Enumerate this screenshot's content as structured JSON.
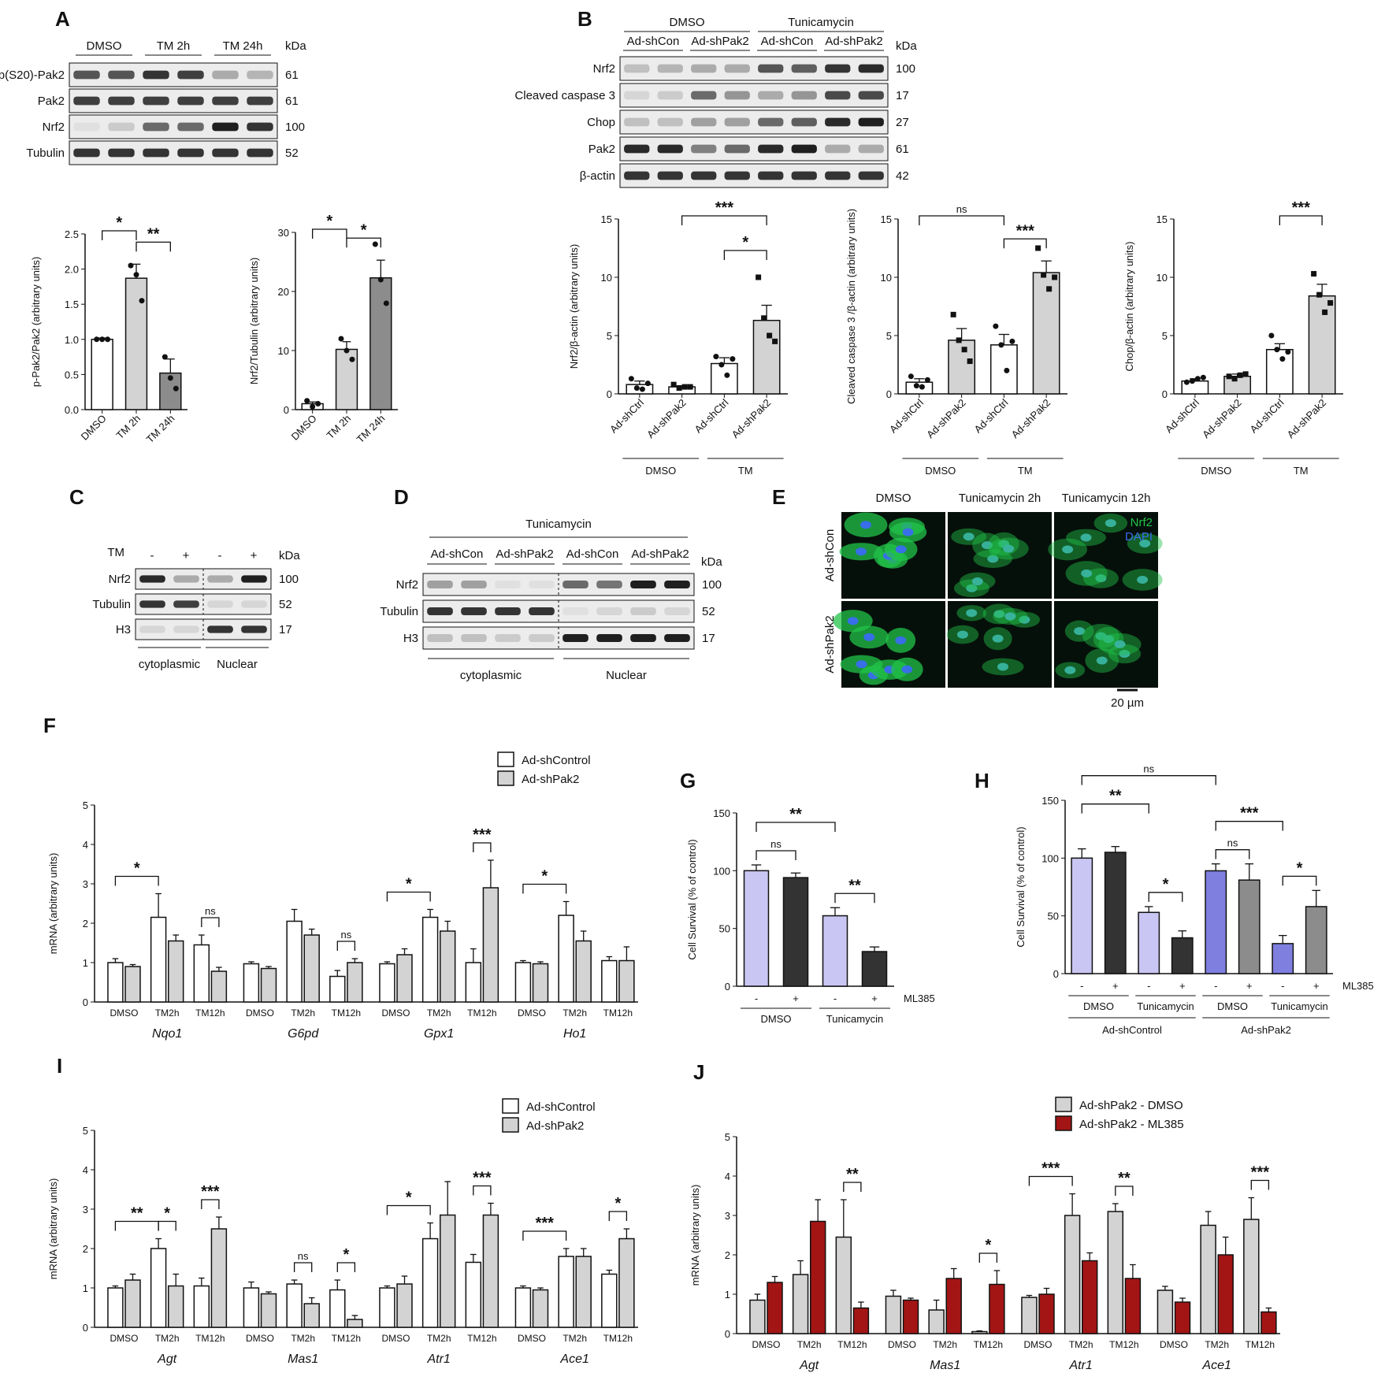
{
  "panel_letters": [
    "A",
    "B",
    "C",
    "D",
    "E",
    "F",
    "G",
    "H",
    "I",
    "J"
  ],
  "blotA": {
    "groups": [
      "DMSO",
      "TM 2h",
      "TM 24h"
    ],
    "kda_header": "kDa",
    "rows": [
      {
        "label": "p(S20)-Pak2",
        "kda": "61",
        "intensity": [
          0.7,
          0.7,
          0.85,
          0.8,
          0.3,
          0.25
        ]
      },
      {
        "label": "Pak2",
        "kda": "61",
        "intensity": [
          0.8,
          0.8,
          0.8,
          0.8,
          0.8,
          0.8
        ]
      },
      {
        "label": "Nrf2",
        "kda": "100",
        "intensity": [
          0.05,
          0.15,
          0.6,
          0.6,
          0.95,
          0.85
        ]
      },
      {
        "label": "Tubulin",
        "kda": "52",
        "intensity": [
          0.85,
          0.85,
          0.85,
          0.85,
          0.85,
          0.85
        ]
      }
    ]
  },
  "blotB": {
    "groups": [
      "DMSO",
      "Tunicamycin"
    ],
    "subgroups": [
      "Ad-shCon",
      "Ad-shPak2",
      "Ad-shCon",
      "Ad-shPak2"
    ],
    "kda_header": "kDa",
    "rows": [
      {
        "label": "Nrf2",
        "kda": "100",
        "intensity": [
          0.2,
          0.25,
          0.3,
          0.3,
          0.7,
          0.65,
          0.85,
          0.9
        ]
      },
      {
        "label": "Cleaved caspase 3",
        "kda": "17",
        "intensity": [
          0.1,
          0.15,
          0.6,
          0.4,
          0.3,
          0.4,
          0.75,
          0.75
        ]
      },
      {
        "label": "Chop",
        "kda": "27",
        "intensity": [
          0.2,
          0.2,
          0.35,
          0.35,
          0.6,
          0.65,
          0.9,
          0.95
        ]
      },
      {
        "label": "Pak2",
        "kda": "61",
        "intensity": [
          0.9,
          0.9,
          0.5,
          0.6,
          0.9,
          0.95,
          0.3,
          0.3
        ]
      },
      {
        "label": "β-actin",
        "kda": "42",
        "intensity": [
          0.85,
          0.85,
          0.85,
          0.85,
          0.85,
          0.85,
          0.85,
          0.85
        ]
      }
    ]
  },
  "blotC": {
    "treatment_label": "TM",
    "treatment_marks": [
      "-",
      "+",
      "-",
      "+"
    ],
    "kda_header": "kDa",
    "fractions": [
      "cytoplasmic",
      "Nuclear"
    ],
    "rows": [
      {
        "label": "Nrf2",
        "kda": "100",
        "intensity": [
          0.9,
          0.3,
          0.3,
          0.95
        ]
      },
      {
        "label": "Tubulin",
        "kda": "52",
        "intensity": [
          0.85,
          0.8,
          0.1,
          0.1
        ]
      },
      {
        "label": "H3",
        "kda": "17",
        "intensity": [
          0.1,
          0.1,
          0.85,
          0.85
        ]
      }
    ]
  },
  "blotD": {
    "group": "Tunicamycin",
    "subgroups": [
      "Ad-shCon",
      "Ad-shPak2",
      "Ad-shCon",
      "Ad-shPak2"
    ],
    "kda_header": "kDa",
    "fractions": [
      "cytoplasmic",
      "Nuclear"
    ],
    "rows": [
      {
        "label": "Nrf2",
        "kda": "100",
        "intensity": [
          0.35,
          0.35,
          0.05,
          0.05,
          0.6,
          0.55,
          0.95,
          0.95
        ]
      },
      {
        "label": "Tubulin",
        "kda": "52",
        "intensity": [
          0.85,
          0.85,
          0.85,
          0.85,
          0.05,
          0.1,
          0.15,
          0.1
        ]
      },
      {
        "label": "H3",
        "kda": "17",
        "intensity": [
          0.2,
          0.2,
          0.15,
          0.15,
          0.95,
          0.95,
          0.95,
          0.95
        ]
      }
    ]
  },
  "panelE": {
    "columns": [
      "DMSO",
      "Tunicamycin 2h",
      "Tunicamycin 12h"
    ],
    "rows": [
      "Ad-shCon",
      "Ad-shPak2"
    ],
    "legend": [
      "Nrf2",
      "DAPI"
    ],
    "scale_label": "20 µm",
    "colors": {
      "nrf2": "#22c34a",
      "dapi": "#3a6cf0",
      "background": "#06100a"
    }
  },
  "chart_data": [
    {
      "id": "A1",
      "type": "bar",
      "ylabel": "p-Pak2/Pak2 (arbitrary units)",
      "ylim": [
        0,
        2.5
      ],
      "yticks": [
        "0.0",
        "0.5",
        "1.0",
        "1.5",
        "2.0",
        "2.5"
      ],
      "categories": [
        "DMSO",
        "TM 2h",
        "TM 24h"
      ],
      "values": [
        1.0,
        1.87,
        0.52
      ],
      "errors": [
        0.02,
        0.2,
        0.2
      ],
      "colors": [
        "#ffffff",
        "#d3d3d3",
        "#8c8c8c"
      ],
      "points": [
        [
          1.0,
          1.0,
          1.0
        ],
        [
          2.05,
          1.92,
          1.55
        ],
        [
          0.75,
          0.45,
          0.3
        ]
      ],
      "sig": [
        {
          "from": 0,
          "to": 1,
          "label": "*"
        },
        {
          "from": 1,
          "to": 2,
          "label": "**"
        }
      ]
    },
    {
      "id": "A2",
      "type": "bar",
      "ylabel": "Nrf2/Tubulin (arbitrary units)",
      "ylim": [
        0,
        30
      ],
      "yticks": [
        "0",
        "10",
        "20",
        "30"
      ],
      "categories": [
        "DMSO",
        "TM 2h",
        "TM 24h"
      ],
      "values": [
        1.0,
        10.2,
        22.3
      ],
      "errors": [
        0.3,
        1.3,
        3.0
      ],
      "colors": [
        "#ffffff",
        "#d3d3d3",
        "#8c8c8c"
      ],
      "points": [
        [
          1.5,
          0.5,
          1.0
        ],
        [
          12.0,
          10.0,
          8.5
        ],
        [
          28.0,
          22.0,
          18.0
        ]
      ],
      "sig": [
        {
          "from": 0,
          "to": 1,
          "label": "*"
        },
        {
          "from": 1,
          "to": 2,
          "label": "*"
        }
      ]
    },
    {
      "id": "B1",
      "type": "bar",
      "ylabel": "Nrf2/β-actin (arbitrary units)",
      "ylim": [
        0,
        15
      ],
      "yticks": [
        "0",
        "5",
        "10",
        "15"
      ],
      "categories": [
        "Ad-shCtrl",
        "Ad-shPak2",
        "Ad-shCtrl",
        "Ad-shPak2"
      ],
      "groups": [
        "DMSO",
        "TM"
      ],
      "values": [
        0.8,
        0.6,
        2.6,
        6.3
      ],
      "errors": [
        0.3,
        0.1,
        0.5,
        1.3
      ],
      "colors": [
        "#ffffff",
        "#ffffff",
        "#ffffff",
        "#d3d3d3"
      ],
      "points": [
        [
          1.3,
          0.5,
          0.4,
          0.9
        ],
        [
          0.8,
          0.5,
          0.6,
          0.6
        ],
        [
          3.2,
          2.5,
          1.6,
          3.0
        ],
        [
          10.0,
          6.5,
          5.0,
          4.5
        ]
      ],
      "sig": [
        {
          "from": 1,
          "to": 3,
          "label": "***"
        },
        {
          "from": 2,
          "to": 3,
          "label": "*"
        }
      ]
    },
    {
      "id": "B2",
      "type": "bar",
      "ylabel": "Cleaved caspase 3 /β-actin (arbitrary units)",
      "ylim": [
        0,
        15
      ],
      "yticks": [
        "0",
        "5",
        "10",
        "15"
      ],
      "categories": [
        "Ad-shCtrl",
        "Ad-shPak2",
        "Ad-shCtrl",
        "Ad-shPak2"
      ],
      "groups": [
        "DMSO",
        "TM"
      ],
      "values": [
        1.0,
        4.6,
        4.2,
        10.4
      ],
      "errors": [
        0.3,
        1.0,
        0.9,
        1.0
      ],
      "colors": [
        "#ffffff",
        "#d3d3d3",
        "#ffffff",
        "#d3d3d3"
      ],
      "points": [
        [
          1.5,
          0.7,
          0.6,
          1.2
        ],
        [
          6.8,
          4.6,
          3.8,
          2.8
        ],
        [
          5.8,
          4.2,
          2.0,
          4.5
        ],
        [
          12.5,
          10.2,
          9.0,
          10.0
        ]
      ],
      "sig": [
        {
          "from": 0,
          "to": 2,
          "label": "ns"
        },
        {
          "from": 2,
          "to": 3,
          "label": "***"
        }
      ]
    },
    {
      "id": "B3",
      "type": "bar",
      "ylabel": "Chop/β-actin (arbitrary units)",
      "ylim": [
        0,
        15
      ],
      "yticks": [
        "0",
        "5",
        "10",
        "15"
      ],
      "categories": [
        "Ad-shCtrl",
        "Ad-shPak2",
        "Ad-shCtrl",
        "Ad-shPak2"
      ],
      "groups": [
        "DMSO",
        "TM"
      ],
      "values": [
        1.1,
        1.5,
        3.8,
        8.4
      ],
      "errors": [
        0.2,
        0.2,
        0.5,
        1.0
      ],
      "colors": [
        "#ffffff",
        "#d3d3d3",
        "#ffffff",
        "#d3d3d3"
      ],
      "points": [
        [
          1.0,
          1.1,
          1.3,
          1.4
        ],
        [
          1.5,
          1.3,
          1.6,
          1.7
        ],
        [
          5.0,
          3.8,
          3.0,
          3.6
        ],
        [
          10.3,
          8.5,
          7.0,
          7.8
        ]
      ],
      "sig": [
        {
          "from": 2,
          "to": 3,
          "label": "***"
        }
      ]
    },
    {
      "id": "F",
      "type": "bar",
      "ylabel": "mRNA (arbitrary units)",
      "ylim": [
        0,
        5
      ],
      "yticks": [
        "0",
        "1",
        "2",
        "3",
        "4",
        "5"
      ],
      "genes": [
        "Nqo1",
        "G6pd",
        "Gpx1",
        "Ho1"
      ],
      "xticks": [
        "DMSO",
        "TM2h",
        "TM12h"
      ],
      "series": [
        {
          "name": "Ad-shControl",
          "color": "#ffffff"
        },
        {
          "name": "Ad-shPak2",
          "color": "#d3d3d3"
        }
      ],
      "values": [
        [
          1.0,
          0.9,
          2.15,
          1.55,
          1.45,
          0.78
        ],
        [
          0.97,
          0.85,
          2.05,
          1.7,
          0.65,
          1.0
        ],
        [
          0.97,
          1.2,
          2.15,
          1.8,
          1.0,
          2.9
        ],
        [
          1.0,
          0.97,
          2.2,
          1.55,
          1.05,
          1.05
        ]
      ],
      "errors": [
        [
          0.1,
          0.05,
          0.6,
          0.15,
          0.25,
          0.1
        ],
        [
          0.05,
          0.05,
          0.3,
          0.15,
          0.15,
          0.1
        ],
        [
          0.05,
          0.15,
          0.2,
          0.25,
          0.35,
          0.7
        ],
        [
          0.05,
          0.05,
          0.35,
          0.25,
          0.1,
          0.35
        ]
      ],
      "sig": [
        {
          "gene": 0,
          "from": 0,
          "to": 2,
          "label": "*"
        },
        {
          "gene": 0,
          "from": 4,
          "to": 5,
          "label": "ns"
        },
        {
          "gene": 1,
          "from": 4,
          "to": 5,
          "label": "ns"
        },
        {
          "gene": 2,
          "from": 0,
          "to": 2,
          "label": "*"
        },
        {
          "gene": 2,
          "from": 4,
          "to": 5,
          "label": "***"
        },
        {
          "gene": 3,
          "from": 0,
          "to": 2,
          "label": "*"
        }
      ]
    },
    {
      "id": "G",
      "type": "bar",
      "ylabel": "Cell Survival (% of control)",
      "ylim": [
        0,
        150
      ],
      "yticks": [
        "0",
        "50",
        "100",
        "150"
      ],
      "categories": [
        "-",
        "+",
        "-",
        "+"
      ],
      "groups": [
        "DMSO",
        "Tunicamycin"
      ],
      "treatment_label": "ML385",
      "values": [
        100,
        94,
        61,
        30
      ],
      "errors": [
        5,
        4,
        7,
        4
      ],
      "colors": [
        "#c9c6f3",
        "#333333",
        "#c9c6f3",
        "#333333"
      ],
      "sig": [
        {
          "from": 0,
          "to": 1,
          "label": "ns"
        },
        {
          "from": 0,
          "to": 2,
          "label": "**"
        },
        {
          "from": 2,
          "to": 3,
          "label": "**"
        }
      ]
    },
    {
      "id": "H",
      "type": "bar",
      "ylabel": "Cell Survival (% of control)",
      "ylim": [
        0,
        150
      ],
      "yticks": [
        "0",
        "50",
        "100",
        "150"
      ],
      "categories": [
        "-",
        "+",
        "-",
        "+",
        "-",
        "+",
        "-",
        "+"
      ],
      "groups": [
        "DMSO",
        "Tunicamycin",
        "DMSO",
        "Tunicamycin"
      ],
      "supergroups": [
        "Ad-shControl",
        "Ad-shPak2"
      ],
      "treatment_label": "ML385",
      "values": [
        100,
        105,
        53,
        31,
        89,
        81,
        26,
        58
      ],
      "errors": [
        8,
        5,
        5,
        6,
        6,
        14,
        7,
        14
      ],
      "colors": [
        "#c9c6f3",
        "#333333",
        "#c9c6f3",
        "#333333",
        "#7f7fe0",
        "#8c8c8c",
        "#7f7fe0",
        "#8c8c8c"
      ],
      "sig": [
        {
          "from": 0,
          "to": 4,
          "label": "ns"
        },
        {
          "from": 0,
          "to": 2,
          "label": "**"
        },
        {
          "from": 2,
          "to": 3,
          "label": "*"
        },
        {
          "from": 4,
          "to": 5,
          "label": "ns"
        },
        {
          "from": 4,
          "to": 6,
          "label": "***"
        },
        {
          "from": 6,
          "to": 7,
          "label": "*"
        }
      ]
    },
    {
      "id": "I",
      "type": "bar",
      "ylabel": "mRNA (arbitrary units)",
      "ylim": [
        0,
        5
      ],
      "yticks": [
        "0",
        "1",
        "2",
        "3",
        "4",
        "5"
      ],
      "genes": [
        "Agt",
        "Mas1",
        "Atr1",
        "Ace1"
      ],
      "xticks": [
        "DMSO",
        "TM2h",
        "TM12h"
      ],
      "series": [
        {
          "name": "Ad-shControl",
          "color": "#ffffff"
        },
        {
          "name": "Ad-shPak2",
          "color": "#d3d3d3"
        }
      ],
      "values": [
        [
          1.0,
          1.2,
          2.0,
          1.05,
          1.05,
          2.5
        ],
        [
          1.0,
          0.85,
          1.1,
          0.6,
          0.95,
          0.2
        ],
        [
          1.0,
          1.1,
          2.25,
          2.85,
          1.65,
          2.85
        ],
        [
          1.0,
          0.95,
          1.8,
          1.8,
          1.35,
          2.25
        ]
      ],
      "errors": [
        [
          0.05,
          0.15,
          0.25,
          0.3,
          0.2,
          0.3
        ],
        [
          0.15,
          0.05,
          0.1,
          0.15,
          0.25,
          0.1
        ],
        [
          0.05,
          0.2,
          0.4,
          0.85,
          0.2,
          0.3
        ],
        [
          0.05,
          0.05,
          0.2,
          0.2,
          0.1,
          0.25
        ]
      ],
      "sig": [
        {
          "gene": 0,
          "from": 0,
          "to": 2,
          "label": "**"
        },
        {
          "gene": 0,
          "from": 2,
          "to": 3,
          "label": "*"
        },
        {
          "gene": 0,
          "from": 4,
          "to": 5,
          "label": "***"
        },
        {
          "gene": 1,
          "from": 2,
          "to": 3,
          "label": "ns"
        },
        {
          "gene": 1,
          "from": 4,
          "to": 5,
          "label": "*"
        },
        {
          "gene": 2,
          "from": 0,
          "to": 2,
          "label": "*"
        },
        {
          "gene": 2,
          "from": 4,
          "to": 5,
          "label": "***"
        },
        {
          "gene": 3,
          "from": 0,
          "to": 2,
          "label": "***"
        },
        {
          "gene": 3,
          "from": 4,
          "to": 5,
          "label": "*"
        }
      ]
    },
    {
      "id": "J",
      "type": "bar",
      "ylabel": "mRNA (arbitrary units)",
      "ylim": [
        0,
        5
      ],
      "yticks": [
        "0",
        "1",
        "2",
        "3",
        "4",
        "5"
      ],
      "genes": [
        "Agt",
        "Mas1",
        "Atr1",
        "Ace1"
      ],
      "xticks": [
        "DMSO",
        "TM2h",
        "TM12h"
      ],
      "series": [
        {
          "name": "Ad-shPak2 - DMSO",
          "color": "#d3d3d3"
        },
        {
          "name": "Ad-shPak2 - ML385",
          "color": "#a31515"
        }
      ],
      "values": [
        [
          0.85,
          1.3,
          1.5,
          2.85,
          2.45,
          0.65
        ],
        [
          0.95,
          0.85,
          0.6,
          1.4,
          0.05,
          1.25
        ],
        [
          0.92,
          1.0,
          3.0,
          1.85,
          3.1,
          1.4
        ],
        [
          1.1,
          0.8,
          2.75,
          2.0,
          2.9,
          0.55
        ]
      ],
      "errors": [
        [
          0.15,
          0.15,
          0.35,
          0.55,
          0.95,
          0.15
        ],
        [
          0.15,
          0.05,
          0.25,
          0.25,
          0.02,
          0.35
        ],
        [
          0.05,
          0.15,
          0.55,
          0.2,
          0.2,
          0.35
        ],
        [
          0.1,
          0.1,
          0.35,
          0.45,
          0.55,
          0.1
        ]
      ],
      "sig": [
        {
          "gene": 0,
          "from": 4,
          "to": 5,
          "label": "**"
        },
        {
          "gene": 1,
          "from": 4,
          "to": 5,
          "label": "*"
        },
        {
          "gene": 2,
          "from": 0,
          "to": 2,
          "label": "***"
        },
        {
          "gene": 2,
          "from": 4,
          "to": 5,
          "label": "**"
        },
        {
          "gene": 3,
          "from": 4,
          "to": 5,
          "label": "***"
        }
      ]
    }
  ]
}
